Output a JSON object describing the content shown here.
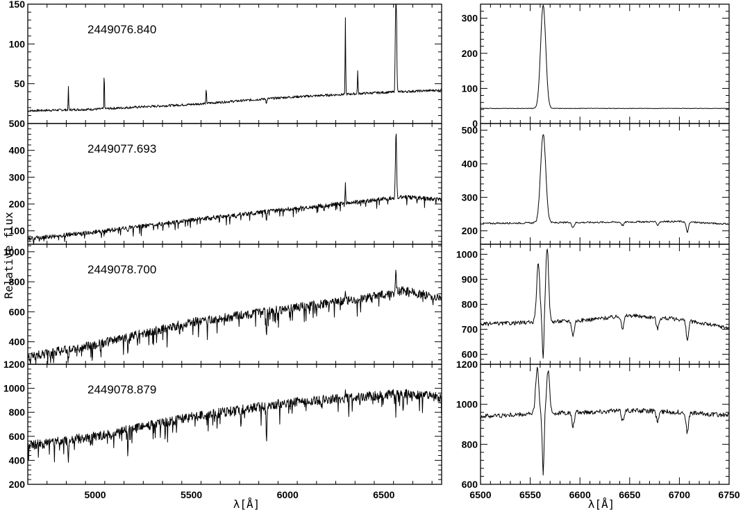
{
  "figure": {
    "ylabel": "Relative flux",
    "xlabel_left": "λ[Å]",
    "xlabel_right": "λ[Å]"
  },
  "chart_data": [
    {
      "type": "line",
      "label": "2449076.840",
      "xlim": [
        4650,
        6800
      ],
      "ylim": [
        0,
        150
      ],
      "xticks": [
        5000,
        5500,
        6000,
        6500
      ],
      "yticks": [
        0,
        50,
        100,
        150
      ],
      "yticklabels": [
        "",
        "50",
        "100",
        "150"
      ],
      "continuum": [
        [
          4650,
          16
        ],
        [
          5000,
          18
        ],
        [
          5500,
          24
        ],
        [
          6000,
          33
        ],
        [
          6400,
          38
        ],
        [
          6800,
          42
        ]
      ],
      "emission": [
        [
          4861,
          30,
          1.2
        ],
        [
          5047,
          55,
          1.2
        ],
        [
          5577,
          18,
          1.5
        ],
        [
          6300,
          95,
          1.5
        ],
        [
          6364,
          30,
          1.5
        ],
        [
          6563,
          160,
          3
        ]
      ],
      "absorption": [
        [
          5890,
          6,
          2
        ]
      ],
      "noise": 1.5
    },
    {
      "type": "line",
      "label": "2449077.693",
      "xlim": [
        4650,
        6800
      ],
      "ylim": [
        50,
        500
      ],
      "xticks": [
        5000,
        5500,
        6000,
        6500
      ],
      "yticks": [
        100,
        200,
        300,
        400,
        500
      ],
      "yticklabels": [
        "100",
        "200",
        "300",
        "400",
        "500"
      ],
      "continuum": [
        [
          4650,
          70
        ],
        [
          5000,
          95
        ],
        [
          5500,
          140
        ],
        [
          6000,
          180
        ],
        [
          6400,
          210
        ],
        [
          6600,
          228
        ],
        [
          6800,
          215
        ]
      ],
      "emission": [
        [
          6300,
          70,
          1.5
        ],
        [
          6563,
          250,
          3
        ]
      ],
      "absorption": [
        [
          5890,
          30,
          2
        ],
        [
          5170,
          15,
          2
        ]
      ],
      "noise": 8
    },
    {
      "type": "line",
      "label": "2449078.700",
      "xlim": [
        4650,
        6800
      ],
      "ylim": [
        250,
        1050
      ],
      "xticks": [
        5000,
        5500,
        6000,
        6500
      ],
      "yticks": [
        400,
        600,
        800,
        1000
      ],
      "yticklabels": [
        "400",
        "600",
        "800",
        "1000"
      ],
      "continuum": [
        [
          4650,
          300
        ],
        [
          5000,
          380
        ],
        [
          5500,
          530
        ],
        [
          6000,
          620
        ],
        [
          6400,
          690
        ],
        [
          6600,
          740
        ],
        [
          6800,
          690
        ]
      ],
      "emission": [
        [
          6563,
          280,
          2
        ],
        [
          6300,
          60,
          1.5
        ]
      ],
      "absorption": [
        [
          5890,
          180,
          2
        ],
        [
          4861,
          60,
          2
        ],
        [
          5170,
          100,
          2
        ],
        [
          6563,
          150,
          1.5
        ]
      ],
      "noise": 30
    },
    {
      "type": "line",
      "label": "2449078.879",
      "xlim": [
        4650,
        6800
      ],
      "ylim": [
        200,
        1200
      ],
      "xticks": [
        5000,
        5500,
        6000,
        6500
      ],
      "yticks": [
        200,
        400,
        600,
        800,
        1000,
        1200
      ],
      "yticklabels": [
        "200",
        "400",
        "600",
        "800",
        "1000",
        "1200"
      ],
      "continuum": [
        [
          4650,
          520
        ],
        [
          5000,
          600
        ],
        [
          5500,
          760
        ],
        [
          6000,
          880
        ],
        [
          6400,
          930
        ],
        [
          6600,
          960
        ],
        [
          6800,
          920
        ]
      ],
      "emission": [
        [
          6563,
          220,
          1.5
        ],
        [
          6300,
          50,
          1.5
        ]
      ],
      "absorption": [
        [
          5890,
          280,
          2
        ],
        [
          4861,
          220,
          2
        ],
        [
          5170,
          200,
          2
        ],
        [
          6563,
          300,
          1.5
        ]
      ],
      "noise": 40
    },
    {
      "type": "line",
      "xlim": [
        6500,
        6750
      ],
      "ylim": [
        0,
        340
      ],
      "xticks": [
        6500,
        6550,
        6600,
        6650,
        6700,
        6750
      ],
      "yticks": [
        0,
        100,
        200,
        300
      ],
      "yticklabels": [
        "0",
        "100",
        "200",
        "300"
      ],
      "continuum": [
        [
          6500,
          43
        ],
        [
          6750,
          43
        ]
      ],
      "emission": [
        [
          6563,
          295,
          2.6
        ]
      ],
      "absorption": [],
      "noise": 0.8
    },
    {
      "type": "line",
      "xlim": [
        6500,
        6750
      ],
      "ylim": [
        160,
        520
      ],
      "xticks": [
        6500,
        6550,
        6600,
        6650,
        6700,
        6750
      ],
      "yticks": [
        200,
        300,
        400,
        500
      ],
      "yticklabels": [
        "200",
        "300",
        "400",
        "500"
      ],
      "continuum": [
        [
          6500,
          222
        ],
        [
          6600,
          225
        ],
        [
          6700,
          228
        ],
        [
          6750,
          220
        ]
      ],
      "emission": [
        [
          6563,
          265,
          2.6
        ]
      ],
      "absorption": [
        [
          6593,
          14,
          1.2
        ],
        [
          6643,
          10,
          1.2
        ],
        [
          6678,
          10,
          1.2
        ],
        [
          6708,
          30,
          1.2
        ]
      ],
      "noise": 2.5
    },
    {
      "type": "line",
      "xlim": [
        6500,
        6750
      ],
      "ylim": [
        560,
        1040
      ],
      "xticks": [
        6500,
        6550,
        6600,
        6650,
        6700,
        6750
      ],
      "yticks": [
        600,
        700,
        800,
        900,
        1000
      ],
      "yticklabels": [
        "600",
        "700",
        "800",
        "900",
        "1000"
      ],
      "continuum": [
        [
          6500,
          720
        ],
        [
          6600,
          735
        ],
        [
          6650,
          755
        ],
        [
          6700,
          740
        ],
        [
          6750,
          705
        ]
      ],
      "emission": [
        [
          6558,
          230,
          1.6
        ],
        [
          6567,
          300,
          1.5
        ]
      ],
      "absorption": [
        [
          6563,
          150,
          0.8
        ],
        [
          6593,
          60,
          1.2
        ],
        [
          6643,
          50,
          1.2
        ],
        [
          6678,
          45,
          1.2
        ],
        [
          6708,
          80,
          1.2
        ]
      ],
      "noise": 8
    },
    {
      "type": "line",
      "xlim": [
        6500,
        6750
      ],
      "ylim": [
        600,
        1200
      ],
      "xticks": [
        6500,
        6550,
        6600,
        6650,
        6700,
        6750
      ],
      "yticks": [
        600,
        800,
        1000,
        1200
      ],
      "yticklabels": [
        "600",
        "800",
        "1000",
        "1200"
      ],
      "continuum": [
        [
          6500,
          940
        ],
        [
          6600,
          960
        ],
        [
          6650,
          970
        ],
        [
          6700,
          960
        ],
        [
          6750,
          945
        ]
      ],
      "emission": [
        [
          6557,
          230,
          1.6
        ],
        [
          6568,
          210,
          1.6
        ]
      ],
      "absorption": [
        [
          6563,
          300,
          0.9
        ],
        [
          6593,
          70,
          1.2
        ],
        [
          6643,
          50,
          1.2
        ],
        [
          6678,
          50,
          1.2
        ],
        [
          6708,
          100,
          1.2
        ]
      ],
      "noise": 12
    }
  ],
  "bottom_xticklabels": {
    "left": [
      "5000",
      "5500",
      "6000",
      "6500"
    ],
    "right": [
      "6500",
      "6550",
      "6600",
      "6650",
      "6700",
      "6750"
    ]
  }
}
